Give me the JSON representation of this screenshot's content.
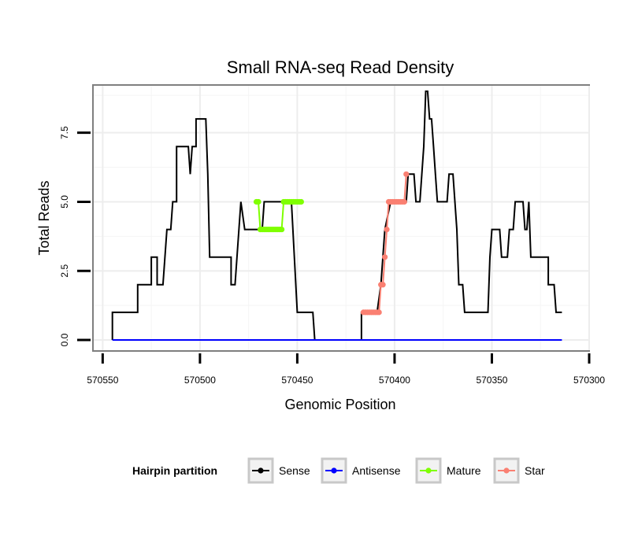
{
  "chart_data": {
    "type": "line",
    "title": "Small RNA-seq Read Density",
    "xlabel": "Genomic Position",
    "ylabel": "Total Reads",
    "x_reversed": true,
    "xlim": [
      570300,
      570555
    ],
    "ylim": [
      0,
      9.0
    ],
    "x_ticks": [
      570550,
      570500,
      570450,
      570400,
      570350,
      570300
    ],
    "y_ticks": [
      0.0,
      2.5,
      5.0,
      7.5
    ],
    "y_tick_labels": [
      "0.0",
      "2.5",
      "5.0",
      "7.5"
    ],
    "grid": true,
    "legend": {
      "title": "Hairpin partition",
      "placement": "bottom",
      "entries": [
        "Sense",
        "Antisense",
        "Mature",
        "Star"
      ]
    },
    "colors": {
      "Sense": "#000000",
      "Antisense": "#0000ff",
      "Mature": "#7fff00",
      "Star": "#fa8072"
    },
    "series": [
      {
        "name": "Sense",
        "style": "line",
        "points": [
          [
            570545,
            0
          ],
          [
            570545,
            1
          ],
          [
            570532,
            1
          ],
          [
            570532,
            2
          ],
          [
            570525,
            2
          ],
          [
            570525,
            3
          ],
          [
            570522,
            3
          ],
          [
            570522,
            2
          ],
          [
            570519,
            2
          ],
          [
            570517,
            4
          ],
          [
            570515,
            4
          ],
          [
            570514,
            5
          ],
          [
            570512,
            5
          ],
          [
            570512,
            7
          ],
          [
            570506,
            7
          ],
          [
            570505,
            6
          ],
          [
            570504,
            7
          ],
          [
            570502,
            7
          ],
          [
            570502,
            8
          ],
          [
            570497,
            8
          ],
          [
            570496,
            6
          ],
          [
            570495,
            3
          ],
          [
            570484,
            3
          ],
          [
            570484,
            2
          ],
          [
            570482,
            2
          ],
          [
            570479,
            5
          ],
          [
            570477,
            4
          ],
          [
            570468,
            4
          ],
          [
            570467,
            5
          ],
          [
            570453,
            5
          ],
          [
            570450,
            1
          ],
          [
            570442,
            1
          ],
          [
            570441,
            0
          ],
          [
            570417,
            0
          ],
          [
            570417,
            1
          ],
          [
            570409,
            1
          ],
          [
            570407,
            2
          ],
          [
            570405,
            4
          ],
          [
            570402,
            5
          ],
          [
            570394,
            5
          ],
          [
            570393,
            6
          ],
          [
            570390,
            6
          ],
          [
            570389,
            5
          ],
          [
            570387,
            5
          ],
          [
            570385,
            7
          ],
          [
            570384,
            9
          ],
          [
            570383,
            9
          ],
          [
            570382,
            8
          ],
          [
            570381,
            8
          ],
          [
            570380,
            7
          ],
          [
            570379,
            6
          ],
          [
            570378,
            5
          ],
          [
            570373,
            5
          ],
          [
            570372,
            6
          ],
          [
            570370,
            6
          ],
          [
            570368,
            4
          ],
          [
            570367,
            2
          ],
          [
            570365,
            2
          ],
          [
            570364,
            1
          ],
          [
            570352,
            1
          ],
          [
            570351,
            3
          ],
          [
            570350,
            4
          ],
          [
            570346,
            4
          ],
          [
            570345,
            3
          ],
          [
            570342,
            3
          ],
          [
            570341,
            4
          ],
          [
            570339,
            4
          ],
          [
            570338,
            5
          ],
          [
            570334,
            5
          ],
          [
            570333,
            4
          ],
          [
            570332,
            4
          ],
          [
            570331,
            5
          ],
          [
            570330,
            3
          ],
          [
            570321,
            3
          ],
          [
            570321,
            2
          ],
          [
            570318,
            2
          ],
          [
            570317,
            1
          ],
          [
            570314,
            1
          ]
        ]
      },
      {
        "name": "Antisense",
        "style": "line",
        "points": [
          [
            570545,
            0
          ],
          [
            570314,
            0
          ]
        ]
      },
      {
        "name": "Mature",
        "style": "points",
        "points": [
          [
            570471,
            5
          ],
          [
            570470,
            5
          ],
          [
            570469,
            4
          ],
          [
            570468,
            4
          ],
          [
            570467,
            4
          ],
          [
            570466,
            4
          ],
          [
            570465,
            4
          ],
          [
            570464,
            4
          ],
          [
            570463,
            4
          ],
          [
            570462,
            4
          ],
          [
            570461,
            4
          ],
          [
            570460,
            4
          ],
          [
            570459,
            4
          ],
          [
            570458,
            4
          ],
          [
            570457,
            5
          ],
          [
            570456,
            5
          ],
          [
            570455,
            5
          ],
          [
            570454,
            5
          ],
          [
            570453,
            5
          ],
          [
            570452,
            5
          ],
          [
            570451,
            5
          ],
          [
            570450,
            5
          ],
          [
            570449,
            5
          ],
          [
            570448,
            5
          ]
        ]
      },
      {
        "name": "Star",
        "style": "points",
        "points": [
          [
            570416,
            1
          ],
          [
            570415,
            1
          ],
          [
            570414,
            1
          ],
          [
            570413,
            1
          ],
          [
            570412,
            1
          ],
          [
            570411,
            1
          ],
          [
            570410,
            1
          ],
          [
            570409,
            1
          ],
          [
            570408,
            1
          ],
          [
            570407,
            2
          ],
          [
            570406,
            2
          ],
          [
            570405,
            3
          ],
          [
            570404,
            4
          ],
          [
            570403,
            5
          ],
          [
            570402,
            5
          ],
          [
            570401,
            5
          ],
          [
            570400,
            5
          ],
          [
            570399,
            5
          ],
          [
            570398,
            5
          ],
          [
            570397,
            5
          ],
          [
            570396,
            5
          ],
          [
            570395,
            5
          ],
          [
            570394,
            6
          ]
        ]
      }
    ]
  }
}
